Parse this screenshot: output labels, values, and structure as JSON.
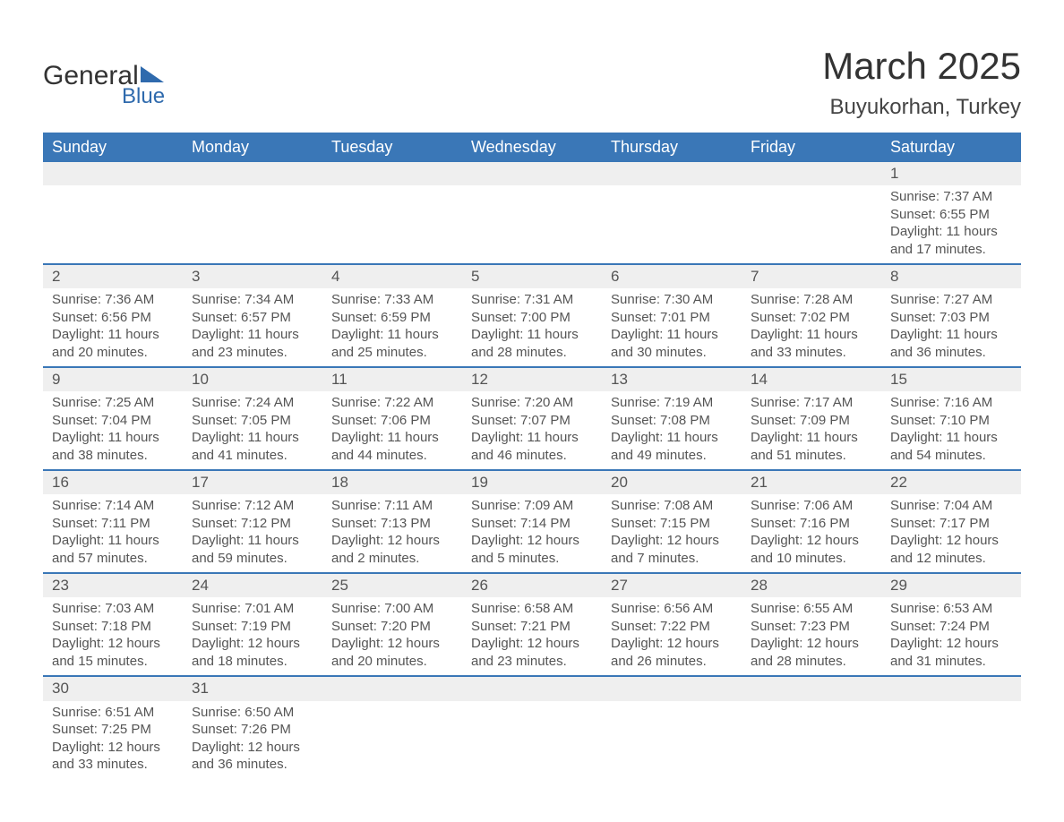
{
  "logo": {
    "text1": "General",
    "text2": "Blue"
  },
  "title": "March 2025",
  "location": "Buyukorhan, Turkey",
  "colors": {
    "header_bg": "#3a77b7",
    "header_text": "#ffffff",
    "daynum_bg": "#efefef",
    "row_border": "#3a77b7",
    "body_text": "#555555",
    "page_bg": "#ffffff",
    "logo_accent": "#2f6aad"
  },
  "typography": {
    "title_fontsize": 42,
    "location_fontsize": 24,
    "header_fontsize": 18,
    "daynum_fontsize": 17,
    "cell_fontsize": 15,
    "font_family": "Arial"
  },
  "day_headers": [
    "Sunday",
    "Monday",
    "Tuesday",
    "Wednesday",
    "Thursday",
    "Friday",
    "Saturday"
  ],
  "weeks": [
    [
      null,
      null,
      null,
      null,
      null,
      null,
      {
        "n": "1",
        "sr": "Sunrise: 7:37 AM",
        "ss": "Sunset: 6:55 PM",
        "d1": "Daylight: 11 hours",
        "d2": "and 17 minutes."
      }
    ],
    [
      {
        "n": "2",
        "sr": "Sunrise: 7:36 AM",
        "ss": "Sunset: 6:56 PM",
        "d1": "Daylight: 11 hours",
        "d2": "and 20 minutes."
      },
      {
        "n": "3",
        "sr": "Sunrise: 7:34 AM",
        "ss": "Sunset: 6:57 PM",
        "d1": "Daylight: 11 hours",
        "d2": "and 23 minutes."
      },
      {
        "n": "4",
        "sr": "Sunrise: 7:33 AM",
        "ss": "Sunset: 6:59 PM",
        "d1": "Daylight: 11 hours",
        "d2": "and 25 minutes."
      },
      {
        "n": "5",
        "sr": "Sunrise: 7:31 AM",
        "ss": "Sunset: 7:00 PM",
        "d1": "Daylight: 11 hours",
        "d2": "and 28 minutes."
      },
      {
        "n": "6",
        "sr": "Sunrise: 7:30 AM",
        "ss": "Sunset: 7:01 PM",
        "d1": "Daylight: 11 hours",
        "d2": "and 30 minutes."
      },
      {
        "n": "7",
        "sr": "Sunrise: 7:28 AM",
        "ss": "Sunset: 7:02 PM",
        "d1": "Daylight: 11 hours",
        "d2": "and 33 minutes."
      },
      {
        "n": "8",
        "sr": "Sunrise: 7:27 AM",
        "ss": "Sunset: 7:03 PM",
        "d1": "Daylight: 11 hours",
        "d2": "and 36 minutes."
      }
    ],
    [
      {
        "n": "9",
        "sr": "Sunrise: 7:25 AM",
        "ss": "Sunset: 7:04 PM",
        "d1": "Daylight: 11 hours",
        "d2": "and 38 minutes."
      },
      {
        "n": "10",
        "sr": "Sunrise: 7:24 AM",
        "ss": "Sunset: 7:05 PM",
        "d1": "Daylight: 11 hours",
        "d2": "and 41 minutes."
      },
      {
        "n": "11",
        "sr": "Sunrise: 7:22 AM",
        "ss": "Sunset: 7:06 PM",
        "d1": "Daylight: 11 hours",
        "d2": "and 44 minutes."
      },
      {
        "n": "12",
        "sr": "Sunrise: 7:20 AM",
        "ss": "Sunset: 7:07 PM",
        "d1": "Daylight: 11 hours",
        "d2": "and 46 minutes."
      },
      {
        "n": "13",
        "sr": "Sunrise: 7:19 AM",
        "ss": "Sunset: 7:08 PM",
        "d1": "Daylight: 11 hours",
        "d2": "and 49 minutes."
      },
      {
        "n": "14",
        "sr": "Sunrise: 7:17 AM",
        "ss": "Sunset: 7:09 PM",
        "d1": "Daylight: 11 hours",
        "d2": "and 51 minutes."
      },
      {
        "n": "15",
        "sr": "Sunrise: 7:16 AM",
        "ss": "Sunset: 7:10 PM",
        "d1": "Daylight: 11 hours",
        "d2": "and 54 minutes."
      }
    ],
    [
      {
        "n": "16",
        "sr": "Sunrise: 7:14 AM",
        "ss": "Sunset: 7:11 PM",
        "d1": "Daylight: 11 hours",
        "d2": "and 57 minutes."
      },
      {
        "n": "17",
        "sr": "Sunrise: 7:12 AM",
        "ss": "Sunset: 7:12 PM",
        "d1": "Daylight: 11 hours",
        "d2": "and 59 minutes."
      },
      {
        "n": "18",
        "sr": "Sunrise: 7:11 AM",
        "ss": "Sunset: 7:13 PM",
        "d1": "Daylight: 12 hours",
        "d2": "and 2 minutes."
      },
      {
        "n": "19",
        "sr": "Sunrise: 7:09 AM",
        "ss": "Sunset: 7:14 PM",
        "d1": "Daylight: 12 hours",
        "d2": "and 5 minutes."
      },
      {
        "n": "20",
        "sr": "Sunrise: 7:08 AM",
        "ss": "Sunset: 7:15 PM",
        "d1": "Daylight: 12 hours",
        "d2": "and 7 minutes."
      },
      {
        "n": "21",
        "sr": "Sunrise: 7:06 AM",
        "ss": "Sunset: 7:16 PM",
        "d1": "Daylight: 12 hours",
        "d2": "and 10 minutes."
      },
      {
        "n": "22",
        "sr": "Sunrise: 7:04 AM",
        "ss": "Sunset: 7:17 PM",
        "d1": "Daylight: 12 hours",
        "d2": "and 12 minutes."
      }
    ],
    [
      {
        "n": "23",
        "sr": "Sunrise: 7:03 AM",
        "ss": "Sunset: 7:18 PM",
        "d1": "Daylight: 12 hours",
        "d2": "and 15 minutes."
      },
      {
        "n": "24",
        "sr": "Sunrise: 7:01 AM",
        "ss": "Sunset: 7:19 PM",
        "d1": "Daylight: 12 hours",
        "d2": "and 18 minutes."
      },
      {
        "n": "25",
        "sr": "Sunrise: 7:00 AM",
        "ss": "Sunset: 7:20 PM",
        "d1": "Daylight: 12 hours",
        "d2": "and 20 minutes."
      },
      {
        "n": "26",
        "sr": "Sunrise: 6:58 AM",
        "ss": "Sunset: 7:21 PM",
        "d1": "Daylight: 12 hours",
        "d2": "and 23 minutes."
      },
      {
        "n": "27",
        "sr": "Sunrise: 6:56 AM",
        "ss": "Sunset: 7:22 PM",
        "d1": "Daylight: 12 hours",
        "d2": "and 26 minutes."
      },
      {
        "n": "28",
        "sr": "Sunrise: 6:55 AM",
        "ss": "Sunset: 7:23 PM",
        "d1": "Daylight: 12 hours",
        "d2": "and 28 minutes."
      },
      {
        "n": "29",
        "sr": "Sunrise: 6:53 AM",
        "ss": "Sunset: 7:24 PM",
        "d1": "Daylight: 12 hours",
        "d2": "and 31 minutes."
      }
    ],
    [
      {
        "n": "30",
        "sr": "Sunrise: 6:51 AM",
        "ss": "Sunset: 7:25 PM",
        "d1": "Daylight: 12 hours",
        "d2": "and 33 minutes."
      },
      {
        "n": "31",
        "sr": "Sunrise: 6:50 AM",
        "ss": "Sunset: 7:26 PM",
        "d1": "Daylight: 12 hours",
        "d2": "and 36 minutes."
      },
      null,
      null,
      null,
      null,
      null
    ]
  ]
}
